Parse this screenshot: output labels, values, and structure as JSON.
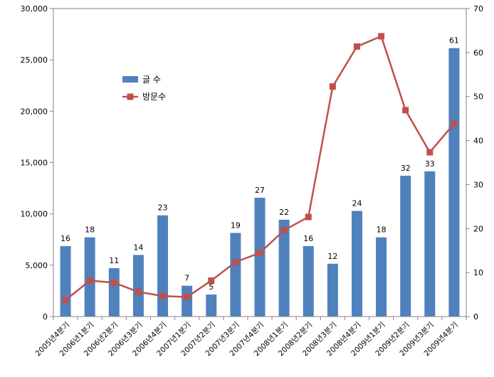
{
  "chart_data": {
    "type": "bar+line",
    "categories": [
      "2005년4분기",
      "2006년1분기",
      "2006년2분기",
      "2006년3분기",
      "2006년4분기",
      "2007년1분기",
      "2007년2분기",
      "2007년3분기",
      "2007년4분기",
      "2008년1분기",
      "2008년2분기",
      "2008년3분기",
      "2008년4분기",
      "2009년1분기",
      "2009년2분기",
      "2009년3분기",
      "2009년4분기"
    ],
    "series": [
      {
        "name": "글 수",
        "kind": "bar",
        "axis": "right",
        "color": "#4F81BD",
        "values": [
          16,
          18,
          11,
          14,
          23,
          7,
          5,
          19,
          27,
          22,
          16,
          12,
          24,
          18,
          32,
          33,
          61
        ]
      },
      {
        "name": "방문수",
        "kind": "line",
        "axis": "left",
        "color": "#C0504D",
        "values": [
          1600,
          3500,
          3300,
          2400,
          2000,
          1900,
          3500,
          5300,
          6200,
          8400,
          9700,
          22400,
          26300,
          27300,
          20100,
          16000,
          18800
        ]
      }
    ],
    "left_axis": {
      "ylim": [
        0,
        30000
      ],
      "ticks": [
        "0",
        "5,000",
        "10,000",
        "15,000",
        "20,000",
        "25,000",
        "30,000"
      ]
    },
    "right_axis": {
      "ylim": [
        0,
        70
      ],
      "ticks": [
        "0",
        "10",
        "20",
        "30",
        "40",
        "50",
        "60",
        "70"
      ]
    },
    "legend": {
      "placement": "upper-left-inside",
      "entries": [
        "글 수",
        "방문수"
      ]
    },
    "grid": false
  }
}
